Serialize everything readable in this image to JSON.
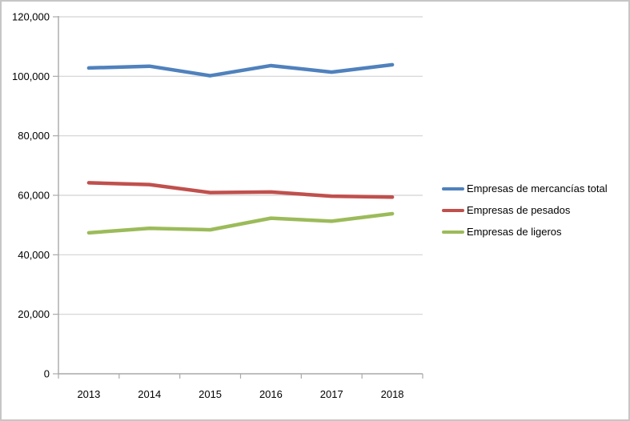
{
  "chart_data": {
    "type": "line",
    "title": "",
    "categories": [
      "2013",
      "2014",
      "2015",
      "2016",
      "2017",
      "2018"
    ],
    "series": [
      {
        "name": "Empresas de mercancías total",
        "color": "#4F81BD",
        "values": [
          102800,
          103400,
          100200,
          103600,
          101400,
          103900
        ]
      },
      {
        "name": "Empresas de pesados",
        "color": "#C0504D",
        "values": [
          64200,
          63600,
          60900,
          61100,
          59700,
          59400
        ]
      },
      {
        "name": "Empresas de ligeros",
        "color": "#9BBB59",
        "values": [
          47400,
          48900,
          48400,
          52300,
          51300,
          53800
        ]
      }
    ],
    "xlabel": "",
    "ylabel": "",
    "ylim": [
      0,
      120000
    ],
    "ytick_step": 20000,
    "ytick_labels": [
      "0",
      "20,000",
      "40,000",
      "60,000",
      "80,000",
      "100,000",
      "120,000"
    ],
    "grid": true,
    "legend_position": "right"
  },
  "colors": {
    "gridline": "#d2d2d2",
    "axis": "#a9a9a9",
    "frame": "#c6c6c6",
    "text": "#000000",
    "background": "#ffffff"
  }
}
